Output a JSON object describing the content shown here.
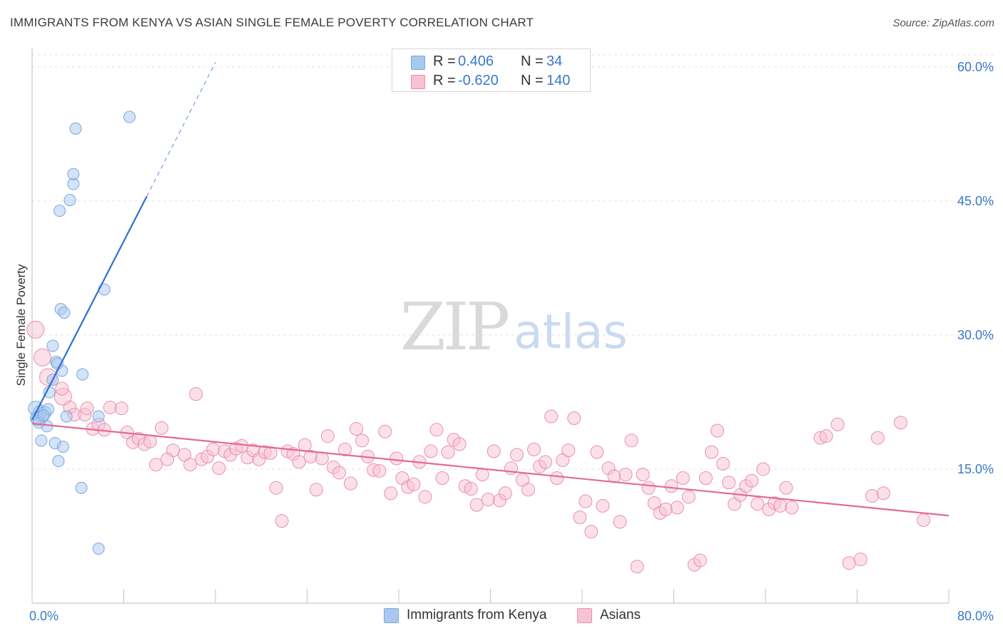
{
  "title": "IMMIGRANTS FROM KENYA VS ASIAN SINGLE FEMALE POVERTY CORRELATION CHART",
  "source": "Source: ZipAtlas.com",
  "watermark": {
    "zip": "ZIP",
    "atlas": "atlas"
  },
  "legend_top": {
    "rows": [
      {
        "r_label": "R =",
        "r_value": "0.406",
        "n_label": "N =",
        "n_value": "34",
        "color": "#aac8ef",
        "border": "#7aa7dd"
      },
      {
        "r_label": "R =",
        "r_value": "-0.620",
        "n_label": "N =",
        "n_value": "140",
        "color": "#f7c2d2",
        "border": "#ea8fae"
      }
    ]
  },
  "legend_bottom": [
    {
      "label": "Immigrants from Kenya",
      "color": "#aac8ef",
      "border": "#7aa7dd"
    },
    {
      "label": "Asians",
      "color": "#f7c2d2",
      "border": "#ea8fae"
    }
  ],
  "colors": {
    "blue_fill": "#aac8ef",
    "blue_stroke": "#7aa7dd",
    "blue_line": "#2f6fd1",
    "pink_fill": "#f7c2d2",
    "pink_stroke": "#ea8fae",
    "pink_line": "#e46a94",
    "tick_label": "#3a78c9",
    "grid": "#e3e3e3"
  },
  "chart_data": {
    "type": "scatter",
    "title": "IMMIGRANTS FROM KENYA VS ASIAN SINGLE FEMALE POVERTY CORRELATION CHART",
    "xlabel": "",
    "ylabel": "Single Female Poverty",
    "xlim": [
      0,
      80
    ],
    "ylim": [
      0,
      61.5
    ],
    "x_tick_labels": [
      "0.0%",
      "80.0%"
    ],
    "y_ticks": [
      15,
      30,
      45,
      60
    ],
    "y_tick_labels": [
      "15.0%",
      "30.0%",
      "45.0%",
      "60.0%"
    ],
    "grid": "horizontal dashed",
    "legend_placement": "bottom-center",
    "series": [
      {
        "name": "Immigrants from Kenya",
        "r": 0.406,
        "n": 34,
        "trend": {
          "x0": 0,
          "y0": 20.5,
          "x1": 10.0,
          "y1": 45.5,
          "dashed_to_x": 16.0,
          "dashed_to_y": 60.5
        },
        "points": [
          [
            0.3,
            21.8,
            10
          ],
          [
            0.5,
            20.6,
            9
          ],
          [
            0.7,
            21.4,
            9
          ],
          [
            0.9,
            20.9,
            9
          ],
          [
            0.4,
            20.7,
            9
          ],
          [
            0.8,
            18.2,
            8
          ],
          [
            1.1,
            21.3,
            9
          ],
          [
            1.3,
            19.8,
            8
          ],
          [
            1.4,
            21.7,
            8
          ],
          [
            1.5,
            23.6,
            8
          ],
          [
            1.8,
            25.0,
            8
          ],
          [
            1.8,
            28.8,
            8
          ],
          [
            2.1,
            27.0,
            8
          ],
          [
            2.0,
            17.9,
            8
          ],
          [
            2.5,
            32.9,
            8
          ],
          [
            2.8,
            32.5,
            8
          ],
          [
            2.6,
            26.0,
            8
          ],
          [
            2.7,
            17.5,
            8
          ],
          [
            2.3,
            15.9,
            8
          ],
          [
            2.4,
            43.9,
            8
          ],
          [
            3.3,
            45.1,
            8
          ],
          [
            3.6,
            46.9,
            8
          ],
          [
            3.6,
            48.0,
            8
          ],
          [
            3.8,
            53.1,
            8
          ],
          [
            4.3,
            12.9,
            8
          ],
          [
            4.4,
            25.6,
            8
          ],
          [
            5.8,
            20.9,
            8
          ],
          [
            6.3,
            35.1,
            8
          ],
          [
            8.5,
            54.4,
            8
          ],
          [
            5.8,
            6.1,
            8
          ],
          [
            3.0,
            20.9,
            8
          ],
          [
            0.6,
            20.2,
            8
          ],
          [
            1.0,
            21.0,
            8
          ],
          [
            2.2,
            26.8,
            8
          ]
        ]
      },
      {
        "name": "Asians",
        "r": -0.62,
        "n": 140,
        "trend": {
          "x0": 0,
          "y0": 20.1,
          "x1": 80,
          "y1": 9.8
        },
        "points": [
          [
            0.3,
            30.6,
            12
          ],
          [
            0.9,
            27.5,
            12
          ],
          [
            1.4,
            25.3,
            12
          ],
          [
            2.7,
            23.1,
            12
          ],
          [
            2.6,
            24.0,
            9
          ],
          [
            3.3,
            21.9,
            9
          ],
          [
            3.7,
            21.1,
            9
          ],
          [
            4.6,
            21.1,
            9
          ],
          [
            4.8,
            21.8,
            9
          ],
          [
            5.3,
            19.5,
            9
          ],
          [
            5.8,
            20.0,
            9
          ],
          [
            6.3,
            19.4,
            9
          ],
          [
            6.8,
            21.9,
            9
          ],
          [
            7.8,
            21.8,
            9
          ],
          [
            8.3,
            19.1,
            9
          ],
          [
            8.8,
            18.0,
            9
          ],
          [
            9.3,
            18.4,
            9
          ],
          [
            9.8,
            17.8,
            9
          ],
          [
            10.3,
            18.1,
            9
          ],
          [
            10.8,
            15.5,
            9
          ],
          [
            11.3,
            19.6,
            9
          ],
          [
            12.3,
            17.1,
            9
          ],
          [
            11.8,
            16.1,
            9
          ],
          [
            13.3,
            16.6,
            9
          ],
          [
            13.8,
            15.5,
            9
          ],
          [
            14.3,
            23.4,
            9
          ],
          [
            14.8,
            16.1,
            9
          ],
          [
            15.3,
            16.4,
            9
          ],
          [
            15.8,
            17.2,
            9
          ],
          [
            16.3,
            15.1,
            9
          ],
          [
            16.8,
            17.0,
            9
          ],
          [
            17.3,
            16.6,
            9
          ],
          [
            17.8,
            17.3,
            9
          ],
          [
            18.3,
            17.6,
            9
          ],
          [
            18.8,
            16.3,
            9
          ],
          [
            19.3,
            17.1,
            9
          ],
          [
            19.8,
            16.1,
            9
          ],
          [
            20.3,
            16.9,
            9
          ],
          [
            20.8,
            16.8,
            9
          ],
          [
            21.3,
            12.9,
            9
          ],
          [
            21.8,
            9.2,
            9
          ],
          [
            22.3,
            17.0,
            9
          ],
          [
            22.8,
            16.7,
            9
          ],
          [
            23.3,
            15.8,
            9
          ],
          [
            23.8,
            17.7,
            9
          ],
          [
            24.3,
            16.4,
            9
          ],
          [
            24.8,
            12.7,
            9
          ],
          [
            25.3,
            16.2,
            9
          ],
          [
            25.8,
            18.7,
            9
          ],
          [
            26.3,
            15.2,
            9
          ],
          [
            26.8,
            14.6,
            9
          ],
          [
            27.3,
            17.2,
            9
          ],
          [
            27.8,
            13.4,
            9
          ],
          [
            28.3,
            19.5,
            9
          ],
          [
            28.8,
            18.2,
            9
          ],
          [
            29.3,
            16.4,
            9
          ],
          [
            29.8,
            14.9,
            9
          ],
          [
            30.3,
            14.8,
            9
          ],
          [
            30.8,
            19.2,
            9
          ],
          [
            31.3,
            12.3,
            9
          ],
          [
            31.8,
            16.2,
            9
          ],
          [
            32.3,
            14.0,
            9
          ],
          [
            32.8,
            13.0,
            9
          ],
          [
            33.3,
            13.3,
            9
          ],
          [
            33.8,
            15.8,
            9
          ],
          [
            34.3,
            11.9,
            9
          ],
          [
            34.8,
            17.0,
            9
          ],
          [
            35.3,
            19.4,
            9
          ],
          [
            35.8,
            14.0,
            9
          ],
          [
            36.3,
            16.9,
            9
          ],
          [
            36.8,
            18.3,
            9
          ],
          [
            37.3,
            17.8,
            9
          ],
          [
            37.8,
            13.1,
            9
          ],
          [
            38.3,
            12.8,
            9
          ],
          [
            38.8,
            11.0,
            9
          ],
          [
            39.3,
            14.4,
            9
          ],
          [
            39.8,
            11.6,
            9
          ],
          [
            40.3,
            17.0,
            9
          ],
          [
            40.8,
            11.5,
            9
          ],
          [
            41.3,
            12.3,
            9
          ],
          [
            41.8,
            15.1,
            9
          ],
          [
            42.3,
            16.6,
            9
          ],
          [
            42.8,
            13.8,
            9
          ],
          [
            43.3,
            12.7,
            9
          ],
          [
            43.8,
            17.2,
            9
          ],
          [
            44.3,
            15.3,
            9
          ],
          [
            44.8,
            15.8,
            9
          ],
          [
            45.3,
            20.9,
            9
          ],
          [
            45.8,
            14.0,
            9
          ],
          [
            46.3,
            16.0,
            9
          ],
          [
            46.8,
            17.1,
            9
          ],
          [
            47.3,
            20.7,
            9
          ],
          [
            47.8,
            9.6,
            9
          ],
          [
            48.3,
            11.4,
            9
          ],
          [
            48.8,
            8.0,
            9
          ],
          [
            49.3,
            16.9,
            9
          ],
          [
            49.8,
            10.9,
            9
          ],
          [
            50.3,
            15.1,
            9
          ],
          [
            50.8,
            14.2,
            9
          ],
          [
            51.3,
            9.1,
            9
          ],
          [
            51.8,
            14.4,
            9
          ],
          [
            52.3,
            18.2,
            9
          ],
          [
            52.8,
            4.1,
            9
          ],
          [
            53.3,
            14.4,
            9
          ],
          [
            53.8,
            12.9,
            9
          ],
          [
            54.3,
            11.2,
            9
          ],
          [
            54.8,
            10.1,
            9
          ],
          [
            55.3,
            10.5,
            9
          ],
          [
            55.8,
            13.1,
            9
          ],
          [
            56.3,
            10.7,
            9
          ],
          [
            56.8,
            14.0,
            9
          ],
          [
            57.3,
            11.9,
            9
          ],
          [
            57.8,
            4.3,
            9
          ],
          [
            58.3,
            4.8,
            9
          ],
          [
            58.8,
            14.0,
            9
          ],
          [
            59.3,
            16.9,
            9
          ],
          [
            59.8,
            19.3,
            9
          ],
          [
            60.3,
            15.6,
            9
          ],
          [
            60.8,
            13.5,
            9
          ],
          [
            61.3,
            11.1,
            9
          ],
          [
            61.8,
            12.1,
            9
          ],
          [
            62.3,
            13.1,
            9
          ],
          [
            62.8,
            13.7,
            9
          ],
          [
            63.3,
            11.1,
            9
          ],
          [
            63.8,
            15.0,
            9
          ],
          [
            64.3,
            10.5,
            9
          ],
          [
            64.8,
            11.2,
            9
          ],
          [
            65.3,
            10.9,
            9
          ],
          [
            65.8,
            12.9,
            9
          ],
          [
            66.3,
            10.7,
            9
          ],
          [
            68.8,
            18.5,
            9
          ],
          [
            69.3,
            18.7,
            9
          ],
          [
            70.3,
            20.0,
            9
          ],
          [
            71.3,
            4.5,
            9
          ],
          [
            72.3,
            4.9,
            9
          ],
          [
            73.3,
            12.0,
            9
          ],
          [
            73.8,
            18.5,
            9
          ],
          [
            74.3,
            12.3,
            9
          ],
          [
            75.8,
            20.2,
            9
          ],
          [
            77.8,
            9.3,
            9
          ]
        ]
      }
    ]
  }
}
